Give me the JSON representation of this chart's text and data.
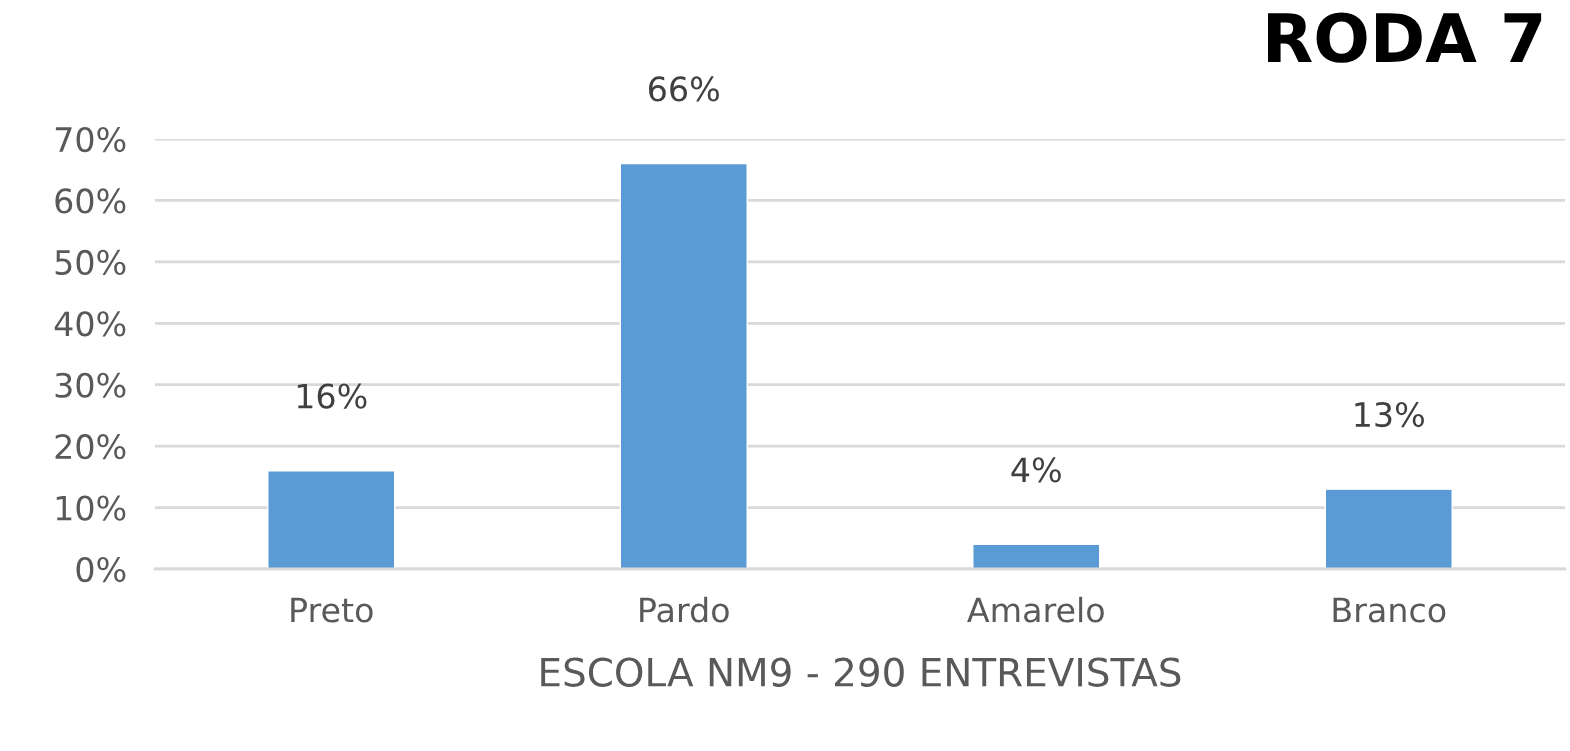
{
  "chart_data": {
    "type": "bar",
    "title": "RODA 7",
    "xlabel": "ESCOLA NM9 - 290 ENTREVISTAS",
    "categories": [
      "Preto",
      "Pardo",
      "Amarelo",
      "Branco"
    ],
    "values": [
      16,
      66,
      4,
      13
    ],
    "value_labels": [
      "16%",
      "66%",
      "4%",
      "13%"
    ],
    "color": "#5b9bd5",
    "ylim": [
      0,
      70
    ],
    "yticks": [
      {
        "value": 0,
        "label": "0%"
      },
      {
        "value": 10,
        "label": "10%"
      },
      {
        "value": 20,
        "label": "20%"
      },
      {
        "value": 30,
        "label": "30%"
      },
      {
        "value": 40,
        "label": "40%"
      },
      {
        "value": 50,
        "label": "50%"
      },
      {
        "value": 60,
        "label": "60%"
      },
      {
        "value": 70,
        "label": "70%"
      }
    ],
    "grid": "y"
  }
}
